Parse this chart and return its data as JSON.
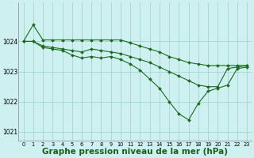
{
  "bg_color": "#cff0f0",
  "grid_color": "#a8dada",
  "line_color": "#1a6b1a",
  "marker_color": "#1a6b1a",
  "xlabel": "Graphe pression niveau de la mer (hPa)",
  "xlabel_fontsize": 7.5,
  "xlim": [
    -0.5,
    23.5
  ],
  "ylim": [
    1020.7,
    1025.3
  ],
  "yticks": [
    1021,
    1022,
    1023,
    1024
  ],
  "xticks": [
    0,
    1,
    2,
    3,
    4,
    5,
    6,
    7,
    8,
    9,
    10,
    11,
    12,
    13,
    14,
    15,
    16,
    17,
    18,
    19,
    20,
    21,
    22,
    23
  ],
  "series": [
    {
      "x": [
        0,
        1,
        2,
        3,
        4,
        5,
        6,
        7,
        8,
        9,
        10,
        11,
        12,
        13,
        14,
        15,
        16,
        17,
        18,
        19,
        20,
        21,
        22,
        23
      ],
      "y": [
        1024.0,
        1024.55,
        1024.05,
        1024.05,
        1024.05,
        1024.05,
        1024.05,
        1024.05,
        1024.05,
        1024.05,
        1024.05,
        1023.95,
        1023.85,
        1023.75,
        1023.65,
        1023.5,
        1023.4,
        1023.3,
        1023.25,
        1023.2,
        1023.2,
        1023.2,
        1023.2,
        1023.2
      ]
    },
    {
      "x": [
        0,
        1,
        2,
        3,
        4,
        5,
        6,
        7,
        8,
        9,
        10,
        11,
        12,
        13,
        14,
        15,
        16,
        17,
        18,
        19,
        20,
        21,
        22,
        23
      ],
      "y": [
        1024.0,
        1024.0,
        1023.85,
        1023.8,
        1023.75,
        1023.7,
        1023.65,
        1023.75,
        1023.7,
        1023.65,
        1023.6,
        1023.5,
        1023.4,
        1023.3,
        1023.15,
        1023.0,
        1022.85,
        1022.7,
        1022.55,
        1022.5,
        1022.5,
        1023.1,
        1023.15,
        1023.2
      ]
    },
    {
      "x": [
        0,
        1,
        2,
        3,
        4,
        5,
        6,
        7,
        8,
        9,
        10,
        11,
        12,
        13,
        14,
        15,
        16,
        17,
        18,
        19,
        20,
        21,
        22,
        23
      ],
      "y": [
        1024.0,
        1024.0,
        1023.8,
        1023.75,
        1023.7,
        1023.55,
        1023.45,
        1023.5,
        1023.45,
        1023.5,
        1023.4,
        1023.25,
        1023.05,
        1022.75,
        1022.45,
        1022.0,
        1021.6,
        1021.4,
        1021.95,
        1022.35,
        1022.45,
        1022.55,
        1023.1,
        1023.15
      ]
    }
  ]
}
